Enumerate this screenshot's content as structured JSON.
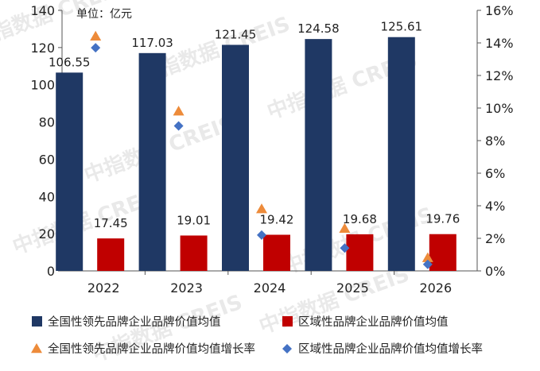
{
  "chart_data": {
    "type": "bar",
    "unit_label": "单位：亿元",
    "categories": [
      "2022",
      "2023",
      "2024",
      "2025",
      "2026"
    ],
    "y_left": {
      "ylim": [
        0,
        140
      ],
      "ticks": [
        0,
        20,
        40,
        60,
        80,
        100,
        120,
        140
      ]
    },
    "y_right": {
      "ylim": [
        0,
        16
      ],
      "ticks": [
        "0%",
        "2%",
        "4%",
        "6%",
        "8%",
        "10%",
        "12%",
        "14%",
        "16%"
      ]
    },
    "grid": false,
    "legend_position": "bottom",
    "series": [
      {
        "name": "全国性领先品牌企业品牌价值均值",
        "kind": "bar",
        "axis": "left",
        "values": [
          106.55,
          117.03,
          121.45,
          124.58,
          125.61
        ],
        "color": "#1f3864"
      },
      {
        "name": "区域性品牌企业品牌价值均值",
        "kind": "bar",
        "axis": "left",
        "values": [
          17.45,
          19.01,
          19.42,
          19.68,
          19.76
        ],
        "color": "#c00000"
      },
      {
        "name": "全国性领先品牌企业品牌价值均值增长率",
        "kind": "marker",
        "marker": "triangle",
        "axis": "right",
        "values": [
          14.4,
          9.8,
          3.8,
          2.6,
          0.8
        ],
        "color": "#ed8b3a"
      },
      {
        "name": "区域性品牌企业品牌价值均值增长率",
        "kind": "marker",
        "marker": "diamond",
        "axis": "right",
        "values": [
          13.7,
          8.9,
          2.2,
          1.4,
          0.4
        ],
        "color": "#4472c4"
      }
    ],
    "data_labels": {
      "series_0": [
        "106.55",
        "117.03",
        "121.45",
        "124.58",
        "125.61"
      ],
      "series_1": [
        "17.45",
        "19.01",
        "19.42",
        "19.68",
        "19.76"
      ]
    }
  },
  "watermark": "中指数据 CREIS"
}
